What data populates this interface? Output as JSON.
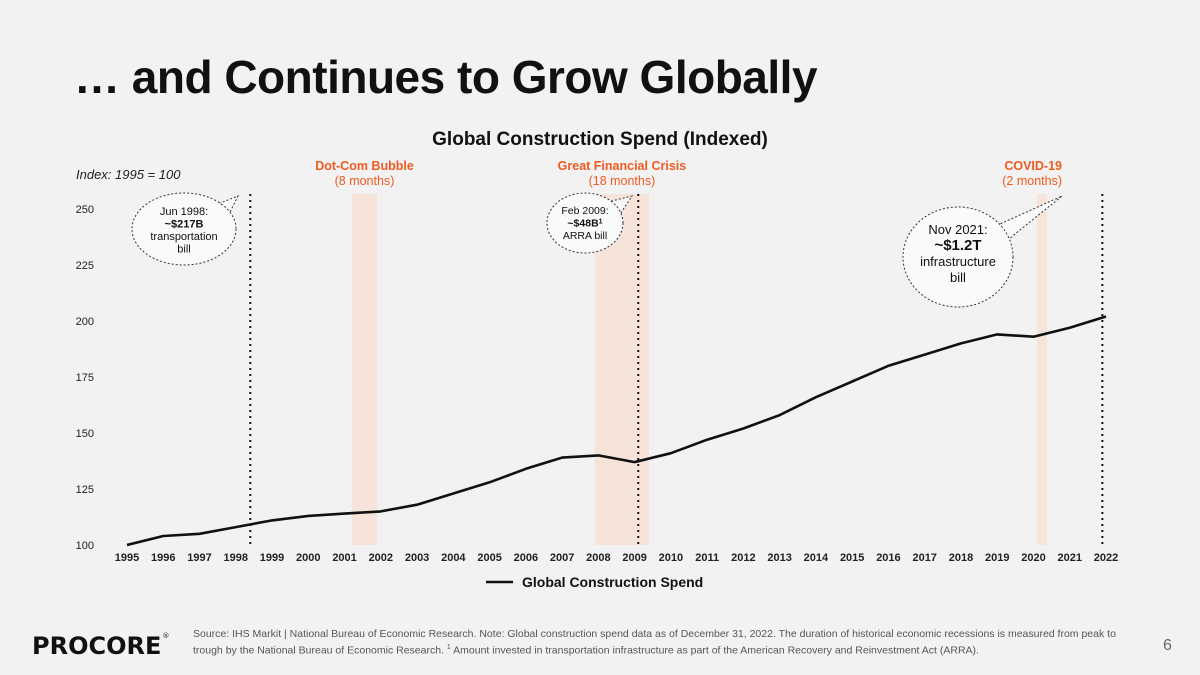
{
  "slide": {
    "title": "… and Continues to Grow Globally",
    "page_number": "6",
    "logo_text": "PROCORE",
    "logo_mark": "®",
    "source_note_1": "Source: IHS Markit | National Bureau of Economic Research. Note: Global construction spend data as of December 31, 2022. The duration of historical economic recessions is measured from peak to trough by the National Bureau of Economic Research. ",
    "source_note_sup": "1",
    "source_note_2": " Amount invested in transportation infrastructure as part of the American Recovery and Reinvestment Act (ARRA)."
  },
  "colors": {
    "accent": "#f05a22",
    "band": "#f6e4da",
    "line": "#111111",
    "background": "#f2f2f2"
  },
  "chart_data": {
    "type": "line",
    "title": "Global Construction Spend (Indexed)",
    "index_note": "Index: 1995 = 100",
    "categories": [
      "1995",
      "1996",
      "1997",
      "1998",
      "1999",
      "2000",
      "2001",
      "2002",
      "2003",
      "2004",
      "2005",
      "2006",
      "2007",
      "2008",
      "2009",
      "2010",
      "2011",
      "2012",
      "2013",
      "2014",
      "2015",
      "2016",
      "2017",
      "2018",
      "2019",
      "2020",
      "2021",
      "2022"
    ],
    "series": [
      {
        "name": "Global Construction Spend",
        "values": [
          100,
          104,
          105,
          108,
          111,
          113,
          114,
          115,
          118,
          123,
          128,
          134,
          139,
          140,
          137,
          141,
          147,
          152,
          158,
          166,
          173,
          180,
          185,
          190,
          194,
          193,
          197,
          202
        ]
      }
    ],
    "ylim": [
      100,
      250
    ],
    "yticks": [
      100,
      125,
      150,
      175,
      200,
      225,
      250
    ],
    "legend": "bottom-center",
    "recessions": [
      {
        "name": "Dot-Com Bubble",
        "duration": "(8 months)",
        "start": 2001.2,
        "end": 2001.9
      },
      {
        "name": "Great Financial Crisis",
        "duration": "(18 months)",
        "start": 2007.9,
        "end": 2009.4
      },
      {
        "name": "COVID-19",
        "duration": "(2 months)",
        "start": 2020.1,
        "end": 2020.3
      }
    ],
    "events": [
      {
        "year": 1998.4,
        "lines": [
          "Jun 1998:",
          "~$217B",
          "transportation",
          "bill"
        ],
        "bold_line": 1
      },
      {
        "year": 2009.1,
        "lines": [
          "Feb 2009:",
          "~$48B",
          "ARRA bill"
        ],
        "bold_line": 1,
        "sup": "1"
      },
      {
        "year": 2021.9,
        "lines": [
          "Nov 2021:",
          "~$1.2T",
          "infrastructure",
          "bill"
        ],
        "bold_line": 1
      }
    ]
  }
}
